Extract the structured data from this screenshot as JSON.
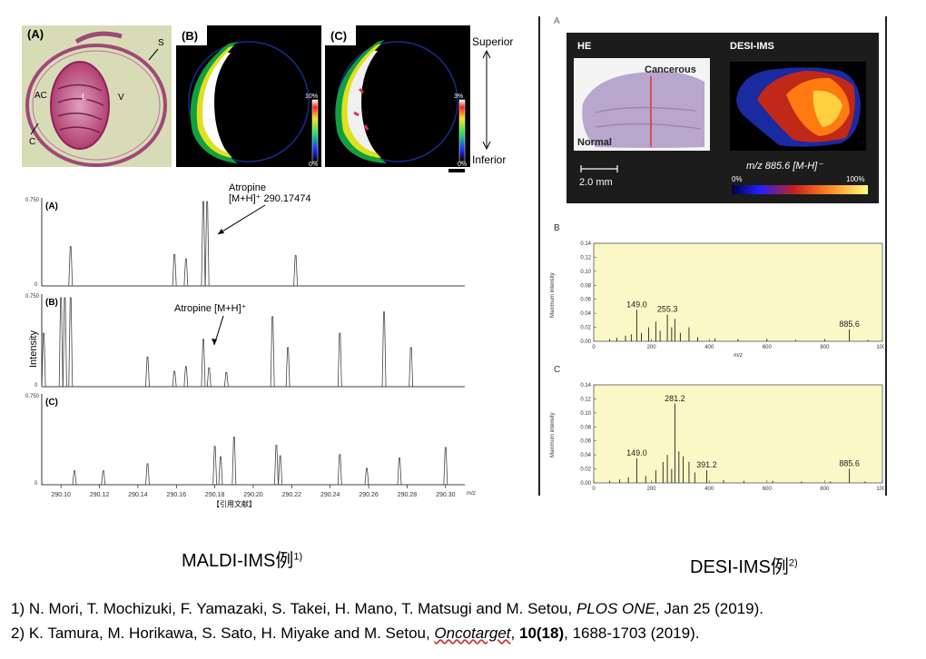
{
  "maldi": {
    "img_labels": [
      "(A)",
      "(B)",
      "(C)"
    ],
    "anat_labels": {
      "s": "S",
      "ac": "AC",
      "l": "L",
      "v": "V",
      "c": "C"
    },
    "scale_b": {
      "top": "10%",
      "bottom": "0%"
    },
    "scale_c": {
      "top": "3%",
      "bottom": "0%"
    },
    "orientation": {
      "superior": "Superior",
      "inferior": "Inferior"
    },
    "spectra_labels": [
      "(A)",
      "(B)",
      "(C)"
    ],
    "y_tick_top": "0.750",
    "y_tick_zero": "0",
    "ylabel": "Intensity",
    "annot_a_line1": "Atropine",
    "annot_a_line2": "[M+H]⁺ 290.17474",
    "annot_b": "Atropine [M+H]⁺",
    "x_ticks": [
      "290.10",
      "290.12",
      "290.14",
      "290.16",
      "290.18",
      "290.20",
      "290.22",
      "290.24",
      "290.26",
      "290.28",
      "290.30"
    ],
    "x_unit": "m/z",
    "ref_note": "【引用文献】",
    "caption": "MALDI-IMS例",
    "caption_sup": "1)"
  },
  "desi": {
    "panel_a": "A",
    "he_label": "HE",
    "desi_label": "DESI-IMS",
    "cancerous": "Cancerous",
    "normal": "Normal",
    "scale_bar": "2.0 mm",
    "mz_label": "m/z 885.6 [M-H]⁻",
    "cbar_min": "0%",
    "cbar_max": "100%",
    "panel_b": "B",
    "panel_c": "C",
    "y_ticks": [
      "0.14",
      "0.12",
      "0.10",
      "0.08",
      "0.06",
      "0.04",
      "0.02",
      "0.00"
    ],
    "x_ticks": [
      "0",
      "200",
      "400",
      "600",
      "800",
      "1000"
    ],
    "xlabel": "m/z",
    "ylabel_b": "Maximum intensity",
    "ylabel_c": "Maximum intensity",
    "peaks_b": [
      "149.0",
      "255.3",
      "885.6"
    ],
    "peaks_c": [
      "281.2",
      "149.0",
      "391.2",
      "885.6"
    ],
    "caption": "DESI-IMS例",
    "caption_sup": "2)"
  },
  "references": [
    {
      "pre": "1) N. Mori, T. Mochizuki, F. Yamazaki, S. Takei, H. Mano, T. Matsugi and M. Setou, ",
      "journal": "PLOS ONE",
      "post": ", Jan 25 (2019)."
    },
    {
      "pre": "2) K. Tamura, M. Horikawa, S. Sato, H. Miyake and M. Setou, ",
      "journal": "Oncotarget",
      "mid": ", ",
      "bold": "10(18)",
      "post": ", 1688-1703 (2019)."
    }
  ],
  "chart_data": [
    {
      "type": "line",
      "title": "(A)",
      "xlabel": "m/z",
      "ylabel": "Intensity",
      "xlim": [
        290.09,
        290.31
      ],
      "ylim": [
        0,
        0.75
      ],
      "peaks_x": [
        290.105,
        290.159,
        290.165,
        290.174,
        290.176,
        290.222
      ],
      "peaks_y": [
        0.35,
        0.28,
        0.24,
        0.75,
        0.75,
        0.27
      ]
    },
    {
      "type": "line",
      "title": "(B)",
      "xlabel": "m/z",
      "ylabel": "Intensity",
      "xlim": [
        290.09,
        290.31
      ],
      "ylim": [
        0,
        0.75
      ],
      "peaks_x": [
        290.091,
        290.1,
        290.102,
        290.105,
        290.145,
        290.159,
        290.165,
        290.174,
        290.177,
        290.186,
        290.21,
        290.218,
        290.245,
        290.268,
        290.282
      ],
      "peaks_y": [
        0.45,
        0.75,
        0.75,
        0.75,
        0.25,
        0.13,
        0.17,
        0.4,
        0.16,
        0.12,
        0.59,
        0.33,
        0.45,
        0.63,
        0.33
      ]
    },
    {
      "type": "line",
      "title": "(C)",
      "xlabel": "m/z",
      "ylabel": "Intensity",
      "xlim": [
        290.09,
        290.31
      ],
      "ylim": [
        0,
        0.75
      ],
      "peaks_x": [
        290.107,
        290.122,
        290.145,
        290.18,
        290.183,
        290.19,
        290.212,
        290.214,
        290.245,
        290.259,
        290.276,
        290.3
      ],
      "peaks_y": [
        0.12,
        0.12,
        0.18,
        0.33,
        0.24,
        0.41,
        0.34,
        0.25,
        0.26,
        0.14,
        0.23,
        0.32
      ]
    },
    {
      "type": "bar",
      "title": "B",
      "xlabel": "m/z",
      "ylabel": "Maximum intensity",
      "xlim": [
        0,
        1000
      ],
      "ylim": [
        0,
        0.14
      ],
      "x": [
        55,
        80,
        110,
        130,
        149,
        165,
        190,
        215,
        230,
        255,
        270,
        281,
        300,
        330,
        360,
        420,
        500,
        600,
        700,
        800,
        885.6,
        950
      ],
      "y": [
        0.003,
        0.005,
        0.008,
        0.01,
        0.045,
        0.012,
        0.02,
        0.028,
        0.015,
        0.038,
        0.02,
        0.032,
        0.012,
        0.02,
        0.006,
        0.004,
        0.003,
        0.003,
        0.002,
        0.002,
        0.017,
        0.002
      ]
    },
    {
      "type": "bar",
      "title": "C",
      "xlabel": "m/z",
      "ylabel": "Maximum intensity",
      "xlim": [
        0,
        1000
      ],
      "ylim": [
        0,
        0.14
      ],
      "x": [
        55,
        90,
        120,
        149,
        180,
        215,
        240,
        255,
        270,
        281.2,
        295,
        310,
        330,
        350,
        391.2,
        450,
        520,
        620,
        720,
        820,
        885.6,
        940
      ],
      "y": [
        0.003,
        0.005,
        0.008,
        0.035,
        0.01,
        0.018,
        0.03,
        0.04,
        0.02,
        0.113,
        0.045,
        0.038,
        0.03,
        0.015,
        0.018,
        0.004,
        0.003,
        0.003,
        0.002,
        0.002,
        0.02,
        0.002
      ]
    }
  ]
}
